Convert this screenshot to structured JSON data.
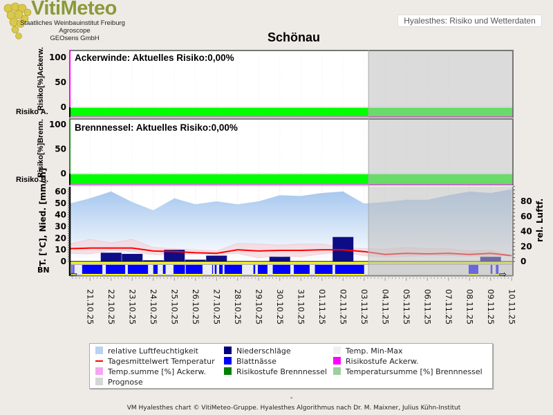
{
  "header": {
    "logo_text": "VitiMeteo",
    "org_lines": [
      "Staatliches Weinbauinstitut Freiburg",
      "Agroscope",
      "GEOsens GmbH"
    ],
    "top_right": "Hyalesthes: Risiko und Wetterdaten",
    "title": "Schönau"
  },
  "chart_data": {
    "type": "line",
    "station": "Schönau",
    "dates": [
      "21.10.25",
      "22.10.25",
      "23.10.25",
      "24.10.25",
      "25.10.25",
      "26.10.25",
      "27.10.25",
      "28.10.25",
      "29.10.25",
      "30.10.25",
      "31.10.25",
      "01.11.25",
      "02.11.25",
      "03.11.25",
      "04.11.25",
      "05.11.25",
      "06.11.25",
      "07.11.25",
      "08.11.25",
      "09.11.25",
      "10.11.25"
    ],
    "prognose_start": "03.11 17:00",
    "panels": [
      {
        "name": "Ackerwinde",
        "title": "Ackerwinde: Aktuelles Risiko:0,00%",
        "ylabel": "Risiko[%]Ackerw.",
        "band_label": "Risiko A.",
        "yticks": [
          "100",
          "50",
          "0"
        ],
        "ylim": [
          0,
          100
        ],
        "risk_level_color": "#00ff00",
        "axis_color": "#ff00ff"
      },
      {
        "name": "Brennnessel",
        "title": "Brennnessel: Aktuelles Risiko:0,00%",
        "ylabel": "Risiko[%]Brenn.",
        "band_label": "Risiko B.",
        "yticks": [
          "100",
          "50",
          "0"
        ],
        "ylim": [
          0,
          100
        ],
        "risk_level_color": "#00ff00",
        "axis_color": "#1f8a1f"
      }
    ],
    "weather": {
      "ylabel_left": "T. [°C], Nied. [mm/ h]",
      "ylabel_right": "rel. Luftf.",
      "yticks_left": [
        "60",
        "50",
        "40",
        "30",
        "20",
        "10",
        "0"
      ],
      "yticks_right": [
        "80",
        "60",
        "40",
        "20",
        "0"
      ],
      "ylim_left": [
        0,
        60
      ],
      "ylim_right": [
        0,
        100
      ],
      "bn_label": "BN",
      "humidity_dates": [
        "20.10",
        "21.10",
        "22.10",
        "23.10",
        "24.10",
        "25.10",
        "26.10",
        "27.10",
        "28.10",
        "29.10",
        "30.10",
        "31.10",
        "01.11",
        "02.11",
        "03.11",
        "04.11",
        "05.11",
        "06.11",
        "07.11",
        "08.11",
        "09.11",
        "10.11"
      ],
      "humidity": [
        77,
        84,
        93,
        79,
        68,
        84,
        76,
        80,
        76,
        80,
        88,
        87,
        91,
        93,
        77,
        79,
        82,
        82,
        88,
        93,
        91,
        96
      ],
      "temp_mean": [
        11,
        11.5,
        11.5,
        11.5,
        9,
        8.5,
        7.5,
        7,
        10,
        9,
        9.5,
        9.5,
        10,
        10,
        8.5,
        6,
        7,
        6.5,
        7,
        6,
        7,
        5
      ],
      "temp_max": [
        15,
        19,
        16,
        19,
        12,
        11,
        10,
        9,
        15.5,
        15,
        14,
        15,
        15,
        12,
        11,
        10.5,
        12,
        11,
        11,
        9,
        9.5,
        5
      ],
      "temp_min": [
        7,
        6.5,
        9.5,
        8.5,
        6,
        6,
        6.5,
        6,
        7,
        3,
        5,
        4,
        6.5,
        8,
        5,
        4,
        4.5,
        5,
        5,
        4.5,
        5,
        5
      ],
      "precip_dates": [
        "21.10",
        "22.10",
        "23.10",
        "24.10",
        "25.10",
        "26.10",
        "27.10",
        "30.10",
        "02.11",
        "09.11"
      ],
      "precip": [
        0.3,
        7.5,
        6.5,
        1,
        10,
        1.5,
        5,
        4,
        21,
        4
      ],
      "leaf_wetness": [
        [
          "20.10 15:00",
          "20.10 16:00"
        ],
        [
          "20.10 17:00",
          "20.10 18:00"
        ],
        [
          "21.10 03:00",
          "22.10 02:00"
        ],
        [
          "22.10 06:00",
          "23.10 04:00"
        ],
        [
          "23.10 07:00",
          "24.10 06:00"
        ],
        [
          "24.10 12:00",
          "24.10 17:00"
        ],
        [
          "24.10 23:00",
          "25.10 02:00"
        ],
        [
          "25.10 11:00",
          "26.10 00:00"
        ],
        [
          "26.10 01:00",
          "26.10 20:00"
        ],
        [
          "27.10 07:00",
          "27.10 08:00"
        ],
        [
          "27.10 10:00",
          "27.10 12:00"
        ],
        [
          "27.10 15:00",
          "27.10 19:00"
        ],
        [
          "27.10 21:00",
          "28.10 17:00"
        ],
        [
          "29.10 06:00",
          "29.10 08:00"
        ],
        [
          "29.10 11:00",
          "29.10 22:00"
        ],
        [
          "30.10 04:00",
          "31.10 00:00"
        ],
        [
          "31.10 04:00",
          "31.10 22:00"
        ],
        [
          "01.11 04:00",
          "02.11 00:00"
        ],
        [
          "02.11 03:00",
          "03.11 12:00"
        ],
        [
          "08.11 11:00",
          "08.11 22:00"
        ],
        [
          "09.11 12:00",
          "09.11 14:00"
        ],
        [
          "09.11 18:00",
          "09.11 21:00"
        ]
      ]
    },
    "colors": {
      "humidity": "#a9c8ee",
      "temp_mean": "#ff0000",
      "temp_range": "#f4b8bf",
      "precip": "#000080",
      "leaf_wetness": "#0000ff",
      "prognose": "#cfcfcf"
    },
    "legend": [
      {
        "label": "relative Luftfeuchtigkeit",
        "color": "#b8d2f2",
        "kind": "box"
      },
      {
        "label": "Niederschläge",
        "color": "#000080",
        "kind": "box"
      },
      {
        "label": "Temp. Min-Max",
        "color": "#f0f0f0",
        "kind": "box"
      },
      {
        "label": "Tagesmittelwert Temperatur",
        "color": "#ff0000",
        "kind": "line"
      },
      {
        "label": "Blattnässe",
        "color": "#0000ff",
        "kind": "box"
      },
      {
        "label": "Risikostufe Ackerw.",
        "color": "#ff00ff",
        "kind": "box"
      },
      {
        "label": "Temp.summe [%] Ackerw.",
        "color": "#f4a6f0",
        "kind": "box"
      },
      {
        "label": "Risikostufe Brennnessel",
        "color": "#008000",
        "kind": "box"
      },
      {
        "label": "Temperatursumme [%] Brennnessel",
        "color": "#9ccf9c",
        "kind": "box"
      },
      {
        "label": "Prognose",
        "color": "#d6d6d6",
        "kind": "box"
      }
    ]
  },
  "footer": {
    "dash": "-",
    "credit": "VM Hyalesthes chart © VitiMeteo-Gruppe. Hyalesthes Algorithmus nach Dr. M. Maixner, Julius Kühn-Institut"
  }
}
